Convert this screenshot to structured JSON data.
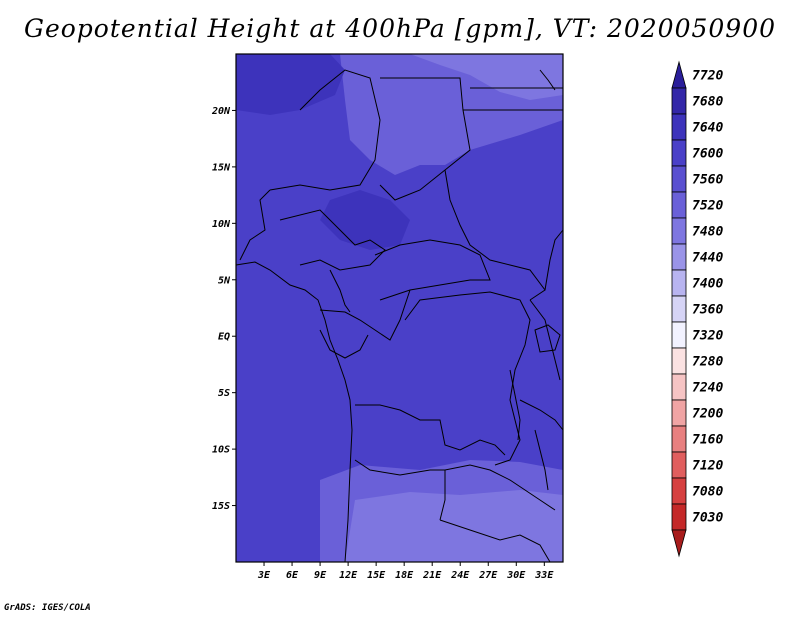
{
  "title": "Geopotential Height at 400hPa [gpm], VT: 2020050900",
  "footer": "GrADS: IGES/COLA",
  "map": {
    "lon_range": [
      0,
      35
    ],
    "lat_range": [
      -20,
      25
    ],
    "lat_ticks": [
      {
        "value": 20,
        "label": "20N"
      },
      {
        "value": 15,
        "label": "15N"
      },
      {
        "value": 10,
        "label": "10N"
      },
      {
        "value": 5,
        "label": "5N"
      },
      {
        "value": 0,
        "label": "EQ"
      },
      {
        "value": -5,
        "label": "5S"
      },
      {
        "value": -10,
        "label": "10S"
      },
      {
        "value": -15,
        "label": "15S"
      }
    ],
    "lon_ticks": [
      {
        "value": 3,
        "label": "3E"
      },
      {
        "value": 6,
        "label": "6E"
      },
      {
        "value": 9,
        "label": "9E"
      },
      {
        "value": 12,
        "label": "12E"
      },
      {
        "value": 15,
        "label": "15E"
      },
      {
        "value": 18,
        "label": "18E"
      },
      {
        "value": 21,
        "label": "21E"
      },
      {
        "value": 24,
        "label": "24E"
      },
      {
        "value": 27,
        "label": "27E"
      },
      {
        "value": 30,
        "label": "30E"
      },
      {
        "value": 33,
        "label": "33E"
      }
    ]
  },
  "colorbar": {
    "labels": [
      "7720",
      "7680",
      "7640",
      "7600",
      "7560",
      "7520",
      "7480",
      "7440",
      "7400",
      "7360",
      "7320",
      "7280",
      "7240",
      "7200",
      "7160",
      "7120",
      "7080",
      "7030"
    ],
    "colors": [
      "#2a1e9a",
      "#3327a8",
      "#3d33bb",
      "#4a40c8",
      "#5a50d0",
      "#6a60d8",
      "#7e76e0",
      "#9a94e8",
      "#b8b4f0",
      "#d6d4f6",
      "#f2f2ff",
      "#fbe2e2",
      "#f6c4c4",
      "#f0a4a4",
      "#e88080",
      "#e05e5e",
      "#d64040",
      "#c42828",
      "#a81c1c"
    ]
  }
}
